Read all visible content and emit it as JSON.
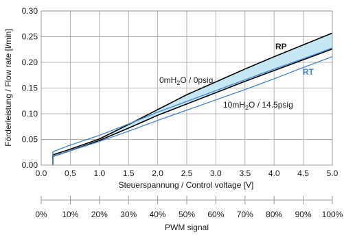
{
  "chart_data": {
    "type": "line",
    "xlabel": "Steuerspannung / Control voltage [V]",
    "ylabel": "Förderleistung / Flow rate [l/min]",
    "xlim": [
      0,
      5
    ],
    "ylim": [
      0,
      0.3
    ],
    "x_ticks": [
      "0.0",
      "0.5",
      "1.0",
      "1.5",
      "2.0",
      "2.5",
      "3.0",
      "3.5",
      "4.0",
      "4.5",
      "5.0"
    ],
    "y_ticks": [
      "0.00",
      "0.05",
      "0.10",
      "0.15",
      "0.20",
      "0.25",
      "0.30"
    ],
    "grid": true,
    "secondary_axis": {
      "label": "PWM signal",
      "ticks": [
        "0%",
        "10%",
        "20%",
        "30%",
        "40%",
        "50%",
        "60%",
        "70%",
        "80%",
        "90%",
        "100%"
      ]
    },
    "series": [
      {
        "name": "RP",
        "condition": "0mH2O / 0psig",
        "color": "#000000",
        "x": [
          0.2,
          0.5,
          1.0,
          1.5,
          2.0,
          2.5,
          3.0,
          3.5,
          4.0,
          4.5,
          5.0
        ],
        "y": [
          0.02,
          0.031,
          0.051,
          0.079,
          0.108,
          0.137,
          0.162,
          0.187,
          0.211,
          0.234,
          0.257
        ]
      },
      {
        "name": "RP",
        "condition": "10mH2O / 14.5psig",
        "color": "#000000",
        "x": [
          0.2,
          0.5,
          1.0,
          1.5,
          2.0,
          2.5,
          3.0,
          3.5,
          4.0,
          4.5,
          5.0
        ],
        "y": [
          0.017,
          0.028,
          0.048,
          0.072,
          0.097,
          0.119,
          0.141,
          0.163,
          0.184,
          0.205,
          0.226
        ]
      },
      {
        "name": "RT",
        "condition": "0mH2O / 0psig",
        "color": "#4a86c8",
        "x": [
          0.2,
          0.5,
          1.0,
          1.5,
          2.0,
          2.5,
          3.0,
          3.5,
          4.0,
          4.5,
          5.0
        ],
        "y": [
          0.026,
          0.039,
          0.058,
          0.08,
          0.103,
          0.124,
          0.145,
          0.166,
          0.187,
          0.207,
          0.228
        ]
      },
      {
        "name": "RT",
        "condition": "10mH2O / 14.5psig",
        "color": "#4a86c8",
        "x": [
          0.2,
          0.5,
          1.0,
          1.5,
          2.0,
          2.5,
          3.0,
          3.5,
          4.0,
          4.5,
          5.0
        ],
        "y": [
          0.017,
          0.028,
          0.046,
          0.066,
          0.087,
          0.107,
          0.127,
          0.147,
          0.168,
          0.19,
          0.211
        ]
      }
    ],
    "band": {
      "color": "#c5e6f3",
      "upper_series": 0,
      "lower_series": 1
    },
    "annotations": {
      "rp_label": "RP",
      "rt_label": "RT",
      "pressure_low": {
        "prefix": "0mH",
        "sub": "2",
        "suffix": "O / 0psig"
      },
      "pressure_high": {
        "prefix": "10mH",
        "sub": "2",
        "suffix": "O / 14.5psig"
      }
    }
  }
}
